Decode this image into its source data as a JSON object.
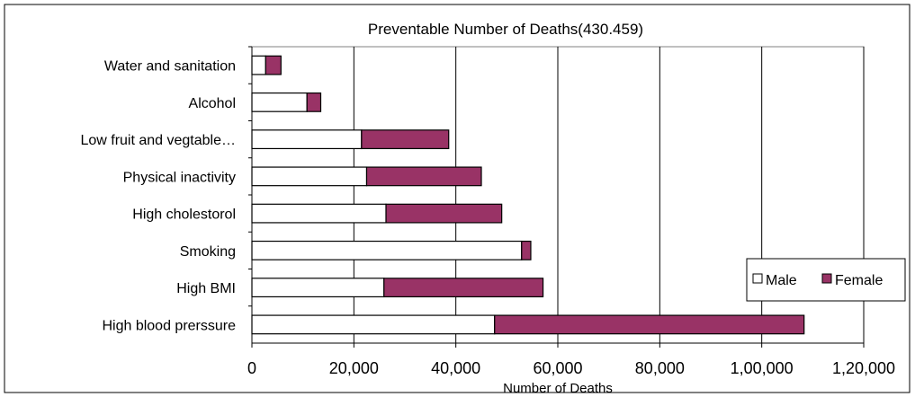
{
  "chart_data": {
    "type": "bar",
    "orientation": "horizontal",
    "stacked": true,
    "title": "Preventable Number of Deaths(430.459)",
    "xlabel": "Number of Deaths",
    "ylabel": "",
    "categories": [
      "Water and sanitation",
      "Alcohol",
      "Low fruit and vegtable…",
      "Physical inactivity",
      "High cholestorol",
      "Smoking",
      "High BMI",
      "High blood prerssure"
    ],
    "series": [
      {
        "name": "Male",
        "color": "#ffffff",
        "values": [
          2700,
          10800,
          21500,
          22500,
          26300,
          52900,
          25900,
          47600
        ]
      },
      {
        "name": "Female",
        "color": "#993366",
        "values": [
          3000,
          2700,
          17100,
          22500,
          22700,
          1800,
          31200,
          60700
        ]
      }
    ],
    "xlim": [
      0,
      120000
    ],
    "xticks": [
      0,
      20000,
      40000,
      60000,
      80000,
      100000,
      120000
    ],
    "xtick_labels": [
      "0",
      "20,000",
      "40,000",
      "60,000",
      "80,000",
      "1,00,000",
      "1,20,000"
    ],
    "grid": "vertical",
    "legend_position": "right"
  }
}
